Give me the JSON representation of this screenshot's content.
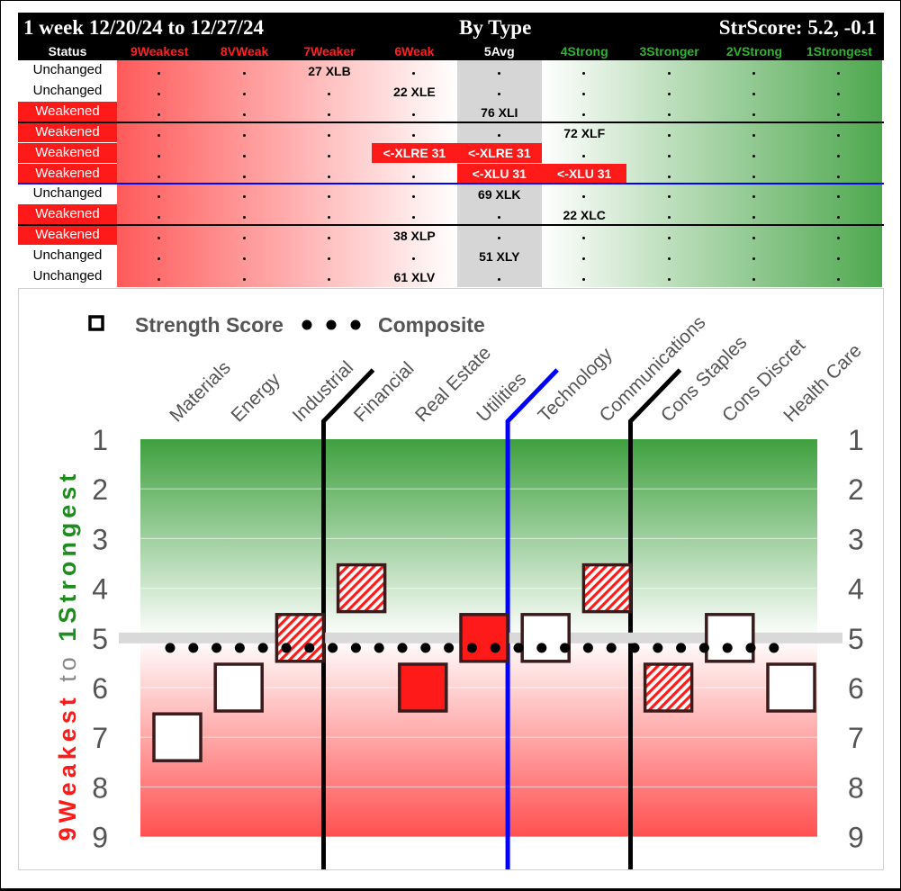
{
  "table": {
    "title_left": "1 week 12/20/24 to 12/27/24",
    "title_center": "By Type",
    "title_right": "StrScore: 5.2, -0.1",
    "status_header": "Status",
    "columns": [
      {
        "label": "9Weakest",
        "color": "#ff2020"
      },
      {
        "label": "8VWeak",
        "color": "#ff2020"
      },
      {
        "label": "7Weaker",
        "color": "#ff2020"
      },
      {
        "label": "6Weak",
        "color": "#ff2020"
      },
      {
        "label": "5Avg",
        "color": "#ffffff"
      },
      {
        "label": "4Strong",
        "color": "#2db52d"
      },
      {
        "label": "3Stronger",
        "color": "#2db52d"
      },
      {
        "label": "2VStrong",
        "color": "#2db52d"
      },
      {
        "label": "1Strongest",
        "color": "#2db52d"
      }
    ],
    "rows": [
      {
        "status": "Unchanged",
        "weak": false,
        "entries": [
          {
            "col": 2,
            "text": "27 XLB",
            "move": false
          }
        ]
      },
      {
        "status": "Unchanged",
        "weak": false,
        "entries": [
          {
            "col": 3,
            "text": "22 XLE",
            "move": false
          }
        ]
      },
      {
        "status": "Weakened",
        "weak": true,
        "entries": [
          {
            "col": 4,
            "text": "76 XLI",
            "move": false
          }
        ]
      },
      {
        "status": "Weakened",
        "weak": true,
        "entries": [
          {
            "col": 5,
            "text": "72 XLF",
            "move": false
          }
        ]
      },
      {
        "status": "Weakened",
        "weak": true,
        "entries": [
          {
            "col": 3,
            "text": "<-XLRE 31",
            "move": true
          },
          {
            "col": 4,
            "text": "<-XLRE 31",
            "move": true
          }
        ]
      },
      {
        "status": "Weakened",
        "weak": true,
        "entries": [
          {
            "col": 4,
            "text": "<-XLU 31",
            "move": true
          },
          {
            "col": 5,
            "text": "<-XLU 31",
            "move": true
          }
        ]
      },
      {
        "status": "Unchanged",
        "weak": false,
        "entries": [
          {
            "col": 4,
            "text": "69 XLK",
            "move": false
          }
        ]
      },
      {
        "status": "Weakened",
        "weak": true,
        "entries": [
          {
            "col": 5,
            "text": "22 XLC",
            "move": false
          }
        ]
      },
      {
        "status": "Weakened",
        "weak": true,
        "entries": [
          {
            "col": 3,
            "text": "38 XLP",
            "move": false
          }
        ]
      },
      {
        "status": "Unchanged",
        "weak": false,
        "entries": [
          {
            "col": 4,
            "text": "51 XLY",
            "move": false
          }
        ]
      },
      {
        "status": "Unchanged",
        "weak": false,
        "entries": [
          {
            "col": 3,
            "text": "61 XLV",
            "move": false
          }
        ]
      }
    ],
    "separators": [
      {
        "after_row": 2,
        "kind": "black"
      },
      {
        "after_row": 5,
        "kind": "blue"
      },
      {
        "after_row": 7,
        "kind": "black"
      }
    ]
  },
  "chart_data": {
    "type": "scatter",
    "legend": {
      "strength_label": "Strength Score",
      "composite_label": "Composite"
    },
    "categories": [
      "Materials",
      "Energy",
      "Industrial",
      "Financial",
      "Real Estate",
      "Utilities",
      "Technology",
      "Communications",
      "Cons Staples",
      "Cons Discret",
      "Health Care"
    ],
    "strength_scores": [
      7,
      6,
      5,
      4,
      6,
      5,
      5,
      4,
      6,
      5,
      6
    ],
    "marker_styles": [
      "hollow",
      "hollow",
      "hatched",
      "hatched",
      "filled",
      "filled",
      "hollow",
      "hatched",
      "hatched",
      "hollow",
      "hollow"
    ],
    "composite": 5.2,
    "average_line": 5,
    "ylim": [
      1,
      9
    ],
    "yticks": [
      "1",
      "2",
      "3",
      "4",
      "5",
      "6",
      "7",
      "8",
      "9"
    ],
    "ylabel_top": "1Strongest",
    "ylabel_to": "to",
    "ylabel_bottom": "9Weakest",
    "group_dividers_after": [
      2,
      5,
      7
    ],
    "colors": {
      "strong": "#1e8c1e",
      "weak": "#ff1a1a",
      "accent_blue": "#0000ff",
      "marker_red": "#ff1a1a",
      "marker_edge": "#3a1a1a"
    }
  }
}
